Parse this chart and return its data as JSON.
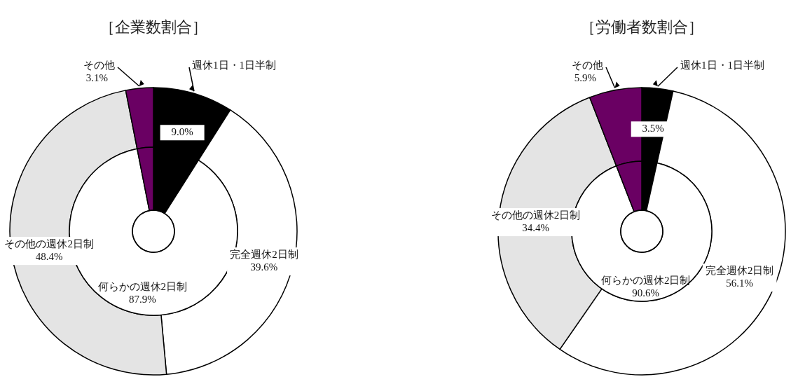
{
  "chart_data": [
    {
      "type": "donut",
      "title": "［企業数割合］",
      "categories": [
        "週休1日・1日半制",
        "完全週休2日制",
        "その他の週休2日制",
        "その他"
      ],
      "series": [
        {
          "values": [
            9.0,
            39.6,
            48.4,
            3.1
          ],
          "value_labels": [
            "9.0%",
            "39.6%",
            "48.4%",
            "3.1%"
          ],
          "colors": [
            "#000000",
            "#ffffff",
            "#e4e4e4",
            "#6a0063"
          ]
        },
        {
          "name": "何らかの週休2日制",
          "values": [
            9.0,
            87.9,
            null,
            3.1
          ],
          "value_labels": [
            null,
            "87.9%",
            null,
            null
          ],
          "colors": [
            "#000000",
            "#ffffff",
            null,
            "#6a0063"
          ]
        }
      ]
    },
    {
      "type": "donut",
      "title": "［労働者数割合］",
      "categories": [
        "週休1日・1日半制",
        "完全週休2日制",
        "その他の週休2日制",
        "その他"
      ],
      "series": [
        {
          "values": [
            3.5,
            56.1,
            34.4,
            5.9
          ],
          "value_labels": [
            "3.5%",
            "56.1%",
            "34.4%",
            "5.9%"
          ],
          "colors": [
            "#000000",
            "#ffffff",
            "#e4e4e4",
            "#6a0063"
          ]
        },
        {
          "name": "何らかの週休2日制",
          "values": [
            3.5,
            90.6,
            null,
            5.9
          ],
          "value_labels": [
            null,
            "90.6%",
            null,
            null
          ],
          "colors": [
            "#000000",
            "#ffffff",
            null,
            "#6a0063"
          ]
        }
      ]
    }
  ]
}
